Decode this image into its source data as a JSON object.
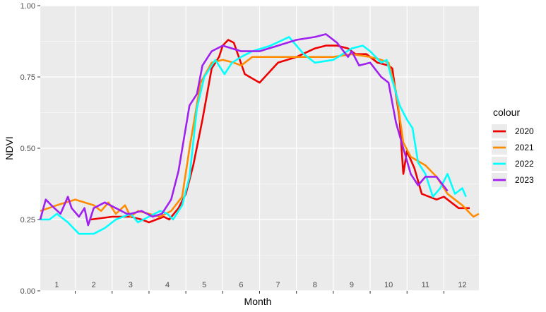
{
  "chart_data": {
    "type": "line",
    "xlabel": "Month",
    "ylabel": "NDVI",
    "xlim": [
      0.55,
      12.45
    ],
    "ylim": [
      0,
      1
    ],
    "yticks": [
      0,
      0.25,
      0.5,
      0.75,
      1
    ],
    "ytick_labels": [
      "0.00",
      "0.25",
      "0.50",
      "0.75",
      "1.00"
    ],
    "month_labels": [
      "1",
      "2",
      "3",
      "4",
      "5",
      "6",
      "7",
      "8",
      "9",
      "10",
      "11",
      "12"
    ],
    "grid": true,
    "legend": {
      "title": "colour",
      "position": "right"
    },
    "series": [
      {
        "name": "2020",
        "color": "#ee0000",
        "x": [
          1.92,
          2.5,
          3,
          3.3,
          3.5,
          3.7,
          3.9,
          4.05,
          4.3,
          4.5,
          4.7,
          4.95,
          5.2,
          5.4,
          5.5,
          5.65,
          5.8,
          6.1,
          6.5,
          7.0,
          7.5,
          8.0,
          8.3,
          8.6,
          8.9,
          9.1,
          9.4,
          9.7,
          10.0,
          10.1,
          10.3,
          10.4,
          10.5,
          10.7,
          10.9,
          11.1,
          11.3,
          11.5,
          11.7,
          11.9,
          12.2
        ],
        "y": [
          0.25,
          0.26,
          0.26,
          0.25,
          0.24,
          0.25,
          0.26,
          0.25,
          0.29,
          0.34,
          0.44,
          0.6,
          0.78,
          0.82,
          0.86,
          0.88,
          0.87,
          0.76,
          0.73,
          0.8,
          0.82,
          0.85,
          0.86,
          0.86,
          0.85,
          0.83,
          0.83,
          0.8,
          0.79,
          0.78,
          0.6,
          0.41,
          0.49,
          0.43,
          0.34,
          0.33,
          0.32,
          0.33,
          0.31,
          0.29,
          0.29
        ]
      },
      {
        "name": "2021",
        "color": "#ff8c00",
        "x": [
          0.55,
          1.0,
          1.5,
          2.0,
          2.2,
          2.4,
          2.6,
          2.85,
          3.0,
          3.2,
          3.5,
          3.8,
          4.1,
          4.4,
          4.6,
          4.9,
          5.2,
          5.5,
          5.8,
          6.0,
          6.3,
          7.0,
          8.0,
          8.5,
          9.0,
          9.5,
          9.8,
          10.0,
          10.2,
          10.4,
          10.6,
          11.0,
          11.3,
          11.6,
          12.0,
          12.3,
          12.45
        ],
        "y": [
          0.28,
          0.3,
          0.32,
          0.3,
          0.28,
          0.31,
          0.27,
          0.3,
          0.26,
          0.28,
          0.27,
          0.26,
          0.28,
          0.33,
          0.5,
          0.73,
          0.8,
          0.81,
          0.8,
          0.79,
          0.82,
          0.82,
          0.82,
          0.82,
          0.83,
          0.82,
          0.81,
          0.8,
          0.7,
          0.52,
          0.47,
          0.44,
          0.4,
          0.34,
          0.3,
          0.26,
          0.27
        ]
      },
      {
        "name": "2022",
        "color": "#00ffff",
        "x": [
          0.55,
          0.8,
          1.0,
          1.3,
          1.6,
          2.0,
          2.3,
          2.6,
          3.0,
          3.2,
          3.5,
          3.8,
          4.0,
          4.15,
          4.4,
          4.6,
          4.8,
          5.0,
          5.3,
          5.55,
          5.75,
          6.0,
          6.3,
          6.8,
          7.3,
          7.7,
          8.0,
          8.5,
          9.0,
          9.3,
          9.5,
          9.8,
          9.95,
          10.05,
          10.3,
          10.5,
          10.65,
          10.8,
          11.0,
          11.2,
          11.4,
          11.6,
          11.8,
          12.0,
          12.1
        ],
        "y": [
          0.25,
          0.25,
          0.27,
          0.24,
          0.2,
          0.2,
          0.22,
          0.25,
          0.27,
          0.24,
          0.26,
          0.28,
          0.27,
          0.25,
          0.3,
          0.4,
          0.64,
          0.75,
          0.81,
          0.76,
          0.8,
          0.82,
          0.84,
          0.86,
          0.89,
          0.83,
          0.8,
          0.81,
          0.85,
          0.86,
          0.84,
          0.8,
          0.81,
          0.76,
          0.65,
          0.6,
          0.57,
          0.45,
          0.41,
          0.33,
          0.36,
          0.41,
          0.34,
          0.36,
          0.33
        ]
      },
      {
        "name": "2023",
        "color": "#a020f0",
        "x": [
          0.55,
          0.7,
          0.85,
          1.1,
          1.3,
          1.4,
          1.6,
          1.75,
          1.85,
          2.0,
          2.3,
          2.6,
          2.9,
          3.0,
          3.3,
          3.6,
          3.85,
          4.1,
          4.3,
          4.6,
          4.8,
          4.95,
          5.2,
          5.5,
          5.75,
          6.0,
          6.5,
          7.0,
          7.5,
          8.0,
          8.3,
          8.6,
          8.9,
          9.0,
          9.2,
          9.5,
          9.8,
          10.0,
          10.2,
          10.4,
          10.6,
          10.8,
          11.0,
          11.3,
          11.6
        ],
        "y": [
          0.25,
          0.32,
          0.3,
          0.27,
          0.33,
          0.29,
          0.26,
          0.29,
          0.23,
          0.29,
          0.31,
          0.29,
          0.27,
          0.27,
          0.28,
          0.26,
          0.27,
          0.32,
          0.42,
          0.65,
          0.69,
          0.79,
          0.84,
          0.86,
          0.85,
          0.84,
          0.84,
          0.86,
          0.88,
          0.89,
          0.9,
          0.87,
          0.82,
          0.84,
          0.79,
          0.8,
          0.75,
          0.73,
          0.59,
          0.5,
          0.41,
          0.37,
          0.4,
          0.4,
          0.35
        ]
      }
    ]
  }
}
